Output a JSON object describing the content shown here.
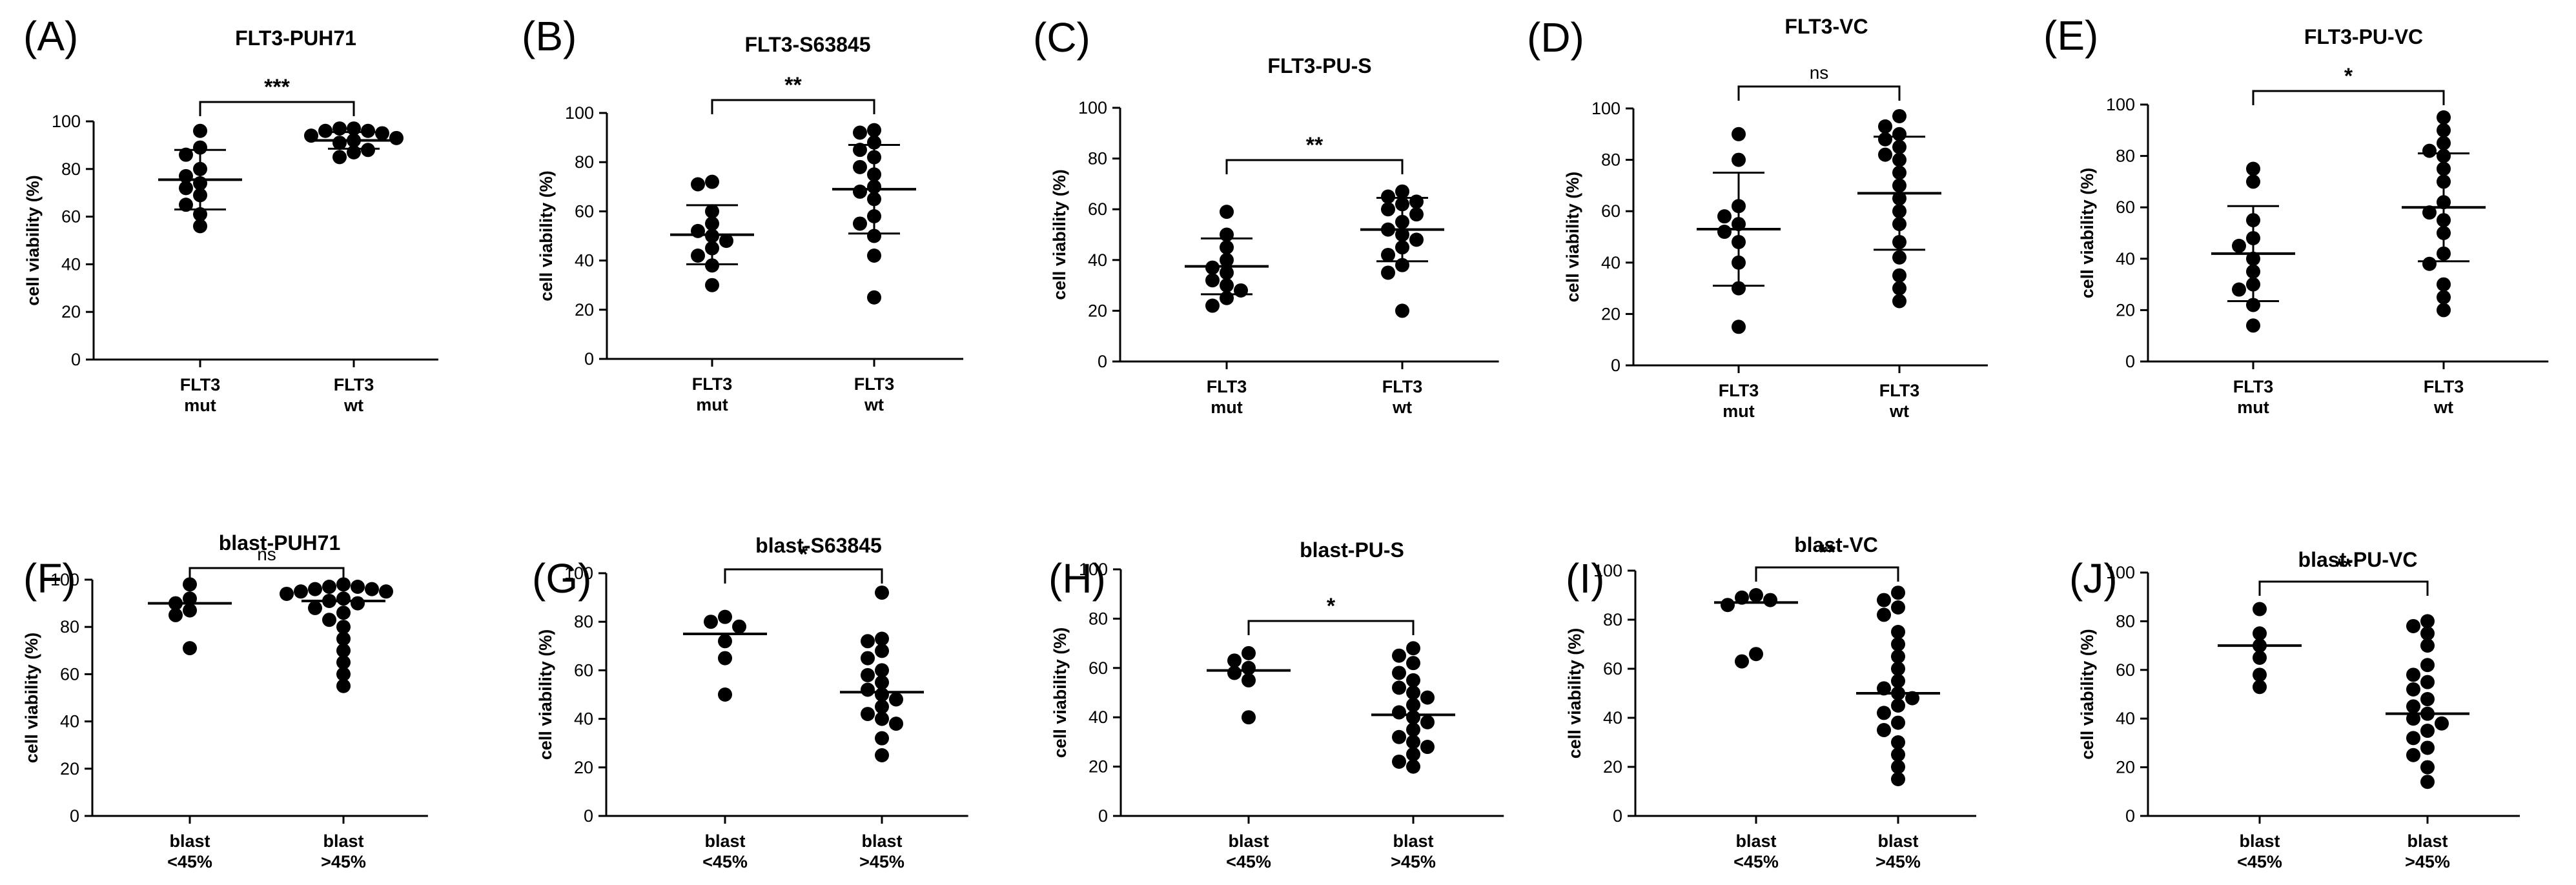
{
  "chart_data": [
    {
      "type": "scatter",
      "panel": "(A)",
      "title": "FLT3-PUH71",
      "ylabel": "cell viability (%)",
      "ylim": [
        0,
        100
      ],
      "yticks": [
        0,
        20,
        40,
        60,
        80,
        100
      ],
      "groups": [
        {
          "label": [
            "FLT3",
            "mut"
          ],
          "mean": 75.5,
          "sd": 12.5,
          "values": [
            96,
            89,
            86,
            80,
            77,
            74,
            72,
            69,
            65,
            61,
            56
          ]
        },
        {
          "label": [
            "FLT3",
            "wt"
          ],
          "mean": 92,
          "sd": 3.5,
          "values": [
            97,
            97,
            96,
            96,
            95,
            94,
            93,
            92,
            91,
            88,
            87,
            85
          ]
        }
      ],
      "significance": "***"
    },
    {
      "type": "scatter",
      "panel": "(B)",
      "title": "FLT3-S63845",
      "ylabel": "cell viability (%)",
      "ylim": [
        0,
        100
      ],
      "yticks": [
        0,
        20,
        40,
        60,
        80,
        100
      ],
      "groups": [
        {
          "label": [
            "FLT3",
            "mut"
          ],
          "mean": 50.5,
          "sd": 12,
          "values": [
            72,
            71,
            60,
            55,
            52,
            50,
            48,
            45,
            42,
            38,
            30
          ]
        },
        {
          "label": [
            "FLT3",
            "wt"
          ],
          "mean": 69,
          "sd": 18,
          "values": [
            93,
            92,
            88,
            85,
            82,
            78,
            75,
            70,
            68,
            65,
            58,
            55,
            50,
            42,
            25
          ]
        }
      ],
      "significance": "**"
    },
    {
      "type": "scatter",
      "panel": "(C)",
      "title": "FLT3-PU-S",
      "ylabel": "cell viability (%)",
      "ylim": [
        0,
        100
      ],
      "yticks": [
        0,
        20,
        40,
        60,
        80,
        100
      ],
      "groups": [
        {
          "label": [
            "FLT3",
            "mut"
          ],
          "mean": 37.5,
          "sd": 11,
          "values": [
            59,
            50,
            45,
            40,
            37,
            35,
            32,
            30,
            28,
            25,
            22
          ]
        },
        {
          "label": [
            "FLT3",
            "wt"
          ],
          "mean": 52,
          "sd": 12.5,
          "values": [
            67,
            65,
            63,
            62,
            60,
            58,
            55,
            52,
            50,
            48,
            45,
            42,
            38,
            35,
            20
          ]
        }
      ],
      "significance": "**"
    },
    {
      "type": "scatter",
      "panel": "(D)",
      "title": "FLT3-VC",
      "ylabel": "cell viability (%)",
      "ylim": [
        0,
        100
      ],
      "yticks": [
        0,
        20,
        40,
        60,
        80,
        100
      ],
      "groups": [
        {
          "label": [
            "FLT3",
            "mut"
          ],
          "mean": 53,
          "sd": 22,
          "values": [
            90,
            80,
            62,
            58,
            55,
            52,
            48,
            40,
            30,
            15
          ]
        },
        {
          "label": [
            "FLT3",
            "wt"
          ],
          "mean": 67,
          "sd": 22,
          "values": [
            97,
            93,
            90,
            88,
            85,
            82,
            80,
            75,
            70,
            65,
            60,
            55,
            48,
            42,
            35,
            30,
            25
          ]
        }
      ],
      "significance": "ns"
    },
    {
      "type": "scatter",
      "panel": "(E)",
      "title": "FLT3-PU-VC",
      "ylabel": "cell viability (%)",
      "ylim": [
        0,
        100
      ],
      "yticks": [
        0,
        20,
        40,
        60,
        80,
        100
      ],
      "groups": [
        {
          "label": [
            "FLT3",
            "mut"
          ],
          "mean": 42,
          "sd": 18.5,
          "values": [
            75,
            70,
            55,
            48,
            45,
            40,
            35,
            30,
            28,
            22,
            14
          ]
        },
        {
          "label": [
            "FLT3",
            "wt"
          ],
          "mean": 60,
          "sd": 21,
          "values": [
            95,
            90,
            85,
            82,
            80,
            75,
            70,
            62,
            58,
            55,
            50,
            42,
            38,
            30,
            25,
            20
          ]
        }
      ],
      "significance": "*"
    },
    {
      "type": "scatter",
      "panel": "(F)",
      "title": "blast-PUH71",
      "ylabel": "cell viability (%)",
      "ylim": [
        0,
        100
      ],
      "yticks": [
        0,
        20,
        40,
        60,
        80,
        100
      ],
      "groups": [
        {
          "label": [
            "blast",
            "<45%"
          ],
          "mean": 90,
          "values": [
            98,
            92,
            90,
            87,
            85,
            71
          ]
        },
        {
          "label": [
            "blast",
            ">45%"
          ],
          "mean": 91,
          "values": [
            98,
            97,
            97,
            96,
            96,
            95,
            95,
            94,
            92,
            91,
            90,
            88,
            86,
            83,
            80,
            75,
            70,
            65,
            60,
            55
          ]
        }
      ],
      "significance": "ns"
    },
    {
      "type": "scatter",
      "panel": "(G)",
      "title": "blast-S63845",
      "ylabel": "cell viability (%)",
      "ylim": [
        0,
        100
      ],
      "yticks": [
        0,
        20,
        40,
        60,
        80,
        100
      ],
      "groups": [
        {
          "label": [
            "blast",
            "<45%"
          ],
          "mean": 75,
          "values": [
            82,
            80,
            78,
            72,
            65,
            50
          ]
        },
        {
          "label": [
            "blast",
            ">45%"
          ],
          "mean": 51,
          "values": [
            92,
            73,
            72,
            68,
            65,
            60,
            58,
            55,
            52,
            50,
            48,
            45,
            42,
            40,
            38,
            32,
            25
          ]
        }
      ],
      "significance": "*"
    },
    {
      "type": "scatter",
      "panel": "(H)",
      "title": "blast-PU-S",
      "ylabel": "cell viability (%)",
      "ylim": [
        0,
        100
      ],
      "yticks": [
        0,
        20,
        40,
        60,
        80,
        100
      ],
      "groups": [
        {
          "label": [
            "blast",
            "<45%"
          ],
          "mean": 59,
          "values": [
            66,
            63,
            60,
            58,
            55,
            40
          ]
        },
        {
          "label": [
            "blast",
            ">45%"
          ],
          "mean": 41,
          "values": [
            68,
            65,
            62,
            58,
            55,
            52,
            50,
            48,
            45,
            42,
            40,
            38,
            35,
            32,
            30,
            28,
            25,
            22,
            20
          ]
        }
      ],
      "significance": "*"
    },
    {
      "type": "scatter",
      "panel": "(I)",
      "title": "blast-VC",
      "ylabel": "cell viability (%)",
      "ylim": [
        0,
        100
      ],
      "yticks": [
        0,
        20,
        40,
        60,
        80,
        100
      ],
      "groups": [
        {
          "label": [
            "blast",
            "<45%"
          ],
          "mean": 87,
          "values": [
            90,
            89,
            88,
            86,
            66,
            63
          ]
        },
        {
          "label": [
            "blast",
            ">45%"
          ],
          "mean": 50,
          "values": [
            91,
            88,
            85,
            82,
            75,
            70,
            65,
            60,
            55,
            52,
            50,
            48,
            45,
            42,
            38,
            35,
            30,
            25,
            20,
            15
          ]
        }
      ],
      "significance": "**"
    },
    {
      "type": "scatter",
      "panel": "(J)",
      "title": "blast-PU-VC",
      "ylabel": "cell viability (%)",
      "ylim": [
        0,
        100
      ],
      "yticks": [
        0,
        20,
        40,
        60,
        80,
        100
      ],
      "groups": [
        {
          "label": [
            "blast",
            "<45%"
          ],
          "mean": 70,
          "values": [
            85,
            75,
            70,
            65,
            58,
            53
          ]
        },
        {
          "label": [
            "blast",
            ">45%"
          ],
          "mean": 42,
          "values": [
            80,
            78,
            75,
            70,
            62,
            58,
            55,
            52,
            48,
            45,
            42,
            40,
            38,
            35,
            32,
            28,
            25,
            20,
            14
          ]
        }
      ],
      "significance": "**"
    }
  ]
}
